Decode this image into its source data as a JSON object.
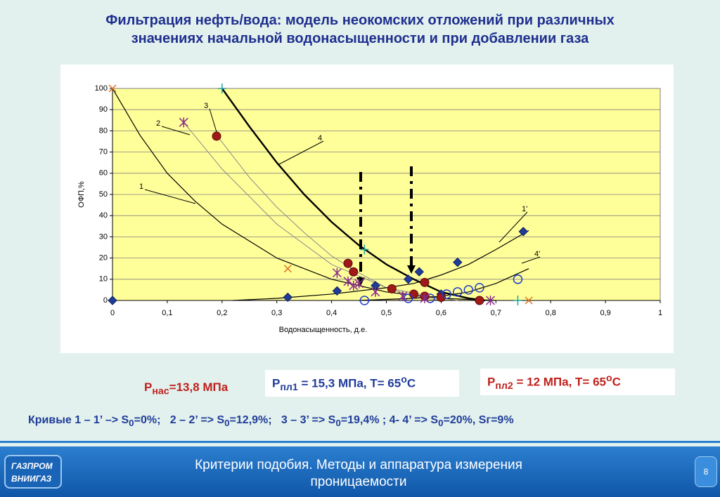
{
  "slide": {
    "title": [
      "Фильтрация нефть/вода: модель неокомских отложений при различных",
      "значениях начальной водонасыщенности и при добавлении газа"
    ],
    "p_sat": [
      "P",
      "нас",
      "=13,8 МПа"
    ],
    "p_res1": [
      "P",
      "пл1",
      " = 15,3 МПа, T= 65",
      "o",
      "C"
    ],
    "p_res2": [
      "P",
      "пл2",
      " = 12 МПа, T= 65",
      "o",
      "C"
    ],
    "curves_note": [
      "Кривые 1 – 1’ –> S",
      "0",
      "=0%;   2 – 2’ => S",
      "0",
      "=12,9%;   3 – 3’ => S",
      "0",
      "=19,4% ; 4- 4’ => S",
      "0",
      "=20%, Sг=9%"
    ],
    "footer": [
      "Критерии подобия. Методы и аппаратура измерения",
      "проницаемости"
    ],
    "page": "8",
    "logo": [
      "ГАЗПРОМ",
      "ВНИИГАЗ"
    ]
  },
  "chart_data": {
    "type": "line",
    "y_label": "ОФП,%",
    "x_label": "Водонасыщенность, д.е.",
    "xlim": [
      0,
      1
    ],
    "ylim": [
      0,
      100
    ],
    "xticks": [
      0,
      {
        "value": 0.1,
        "label": "0,1"
      },
      {
        "value": 0.2,
        "label": "0,2"
      },
      {
        "value": 0.3,
        "label": "0,3"
      },
      {
        "value": 0.4,
        "label": "0,4"
      },
      {
        "value": 0.5,
        "label": "0,5"
      },
      {
        "value": 0.6,
        "label": "0,6"
      },
      {
        "value": 0.7,
        "label": "0,7"
      },
      {
        "value": 0.8,
        "label": "0,8"
      },
      {
        "value": 0.9,
        "label": "0,9"
      },
      1
    ],
    "yticks": [
      0,
      10,
      20,
      30,
      40,
      50,
      60,
      70,
      80,
      90,
      100
    ],
    "grid": true,
    "annotations": [
      "1",
      "2",
      "3",
      "4",
      "1'",
      "4'"
    ],
    "series": [
      {
        "color": "#000000",
        "width": 1.2,
        "x": [
          0,
          0.05,
          0.1,
          0.15,
          0.2,
          0.3,
          0.4,
          0.5,
          0.6,
          0.7
        ],
        "values": [
          100,
          78,
          60,
          47,
          36,
          20,
          10,
          4,
          1,
          0
        ]
      },
      {
        "color": "#8a8a8a",
        "width": 1,
        "x": [
          0.13,
          0.2,
          0.3,
          0.4,
          0.5,
          0.6,
          0.63
        ],
        "values": [
          84,
          62,
          36,
          17,
          6,
          1,
          0
        ]
      },
      {
        "color": "#8a8a8a",
        "width": 1,
        "x": [
          0.19,
          0.25,
          0.3,
          0.35,
          0.4,
          0.45,
          0.5,
          0.55,
          0.6
        ],
        "values": [
          78,
          58,
          44,
          32,
          21,
          13,
          6,
          2,
          0
        ]
      },
      {
        "color": "#000000",
        "width": 2.4,
        "x": [
          0.2,
          0.25,
          0.3,
          0.35,
          0.4,
          0.45,
          0.5,
          0.55,
          0.6,
          0.65,
          0.68
        ],
        "values": [
          100,
          82,
          65,
          50,
          37,
          26,
          17,
          10,
          4,
          1,
          0
        ]
      },
      {
        "color": "#000000",
        "width": 1.2,
        "x": [
          0.22,
          0.3,
          0.4,
          0.5,
          0.55,
          0.6,
          0.65,
          0.7,
          0.76
        ],
        "values": [
          0,
          1,
          3,
          6,
          8,
          12,
          17,
          24,
          33
        ]
      },
      {
        "color": "#000000",
        "width": 1.2,
        "x": [
          0.45,
          0.5,
          0.55,
          0.6,
          0.65,
          0.7,
          0.76
        ],
        "values": [
          0,
          0.5,
          1,
          2,
          4,
          8,
          15
        ]
      },
      {
        "color": "#1f3c99",
        "marker": "diamond",
        "x": [
          0,
          0.32,
          0.41,
          0.48,
          0.54,
          0.56,
          0.6,
          0.63,
          0.75
        ],
        "values": [
          0,
          1.5,
          4.5,
          7,
          10,
          13.5,
          3,
          18,
          32.5
        ]
      },
      {
        "color": "#a01818",
        "marker": "circle",
        "x": [
          0.19,
          0.43,
          0.44,
          0.51,
          0.55,
          0.57,
          0.57,
          0.6,
          0.67
        ],
        "values": [
          77.5,
          17.5,
          13.5,
          5.5,
          3,
          8.5,
          2,
          1.5,
          0
        ]
      },
      {
        "color": "#1f3cc9",
        "marker": "ring",
        "x": [
          0.46,
          0.54,
          0.58,
          0.61,
          0.63,
          0.65,
          0.67,
          0.74
        ],
        "values": [
          0,
          1,
          1,
          3,
          4,
          5,
          6,
          10
        ]
      },
      {
        "color": "#8a2a8a",
        "marker": "star",
        "x": [
          0.13,
          0.41,
          0.43,
          0.44,
          0.45,
          0.48,
          0.53,
          0.57,
          0.69
        ],
        "values": [
          84,
          13,
          9,
          7,
          8,
          4,
          2,
          1,
          0
        ]
      },
      {
        "color": "#e07020",
        "marker": "cross",
        "x": [
          0,
          0.32,
          0.76
        ],
        "values": [
          100,
          15,
          0
        ]
      },
      {
        "color": "#20a0a0",
        "marker": "plus",
        "x": [
          0.2,
          0.46,
          0.74
        ],
        "values": [
          100,
          24,
          0
        ]
      }
    ]
  }
}
